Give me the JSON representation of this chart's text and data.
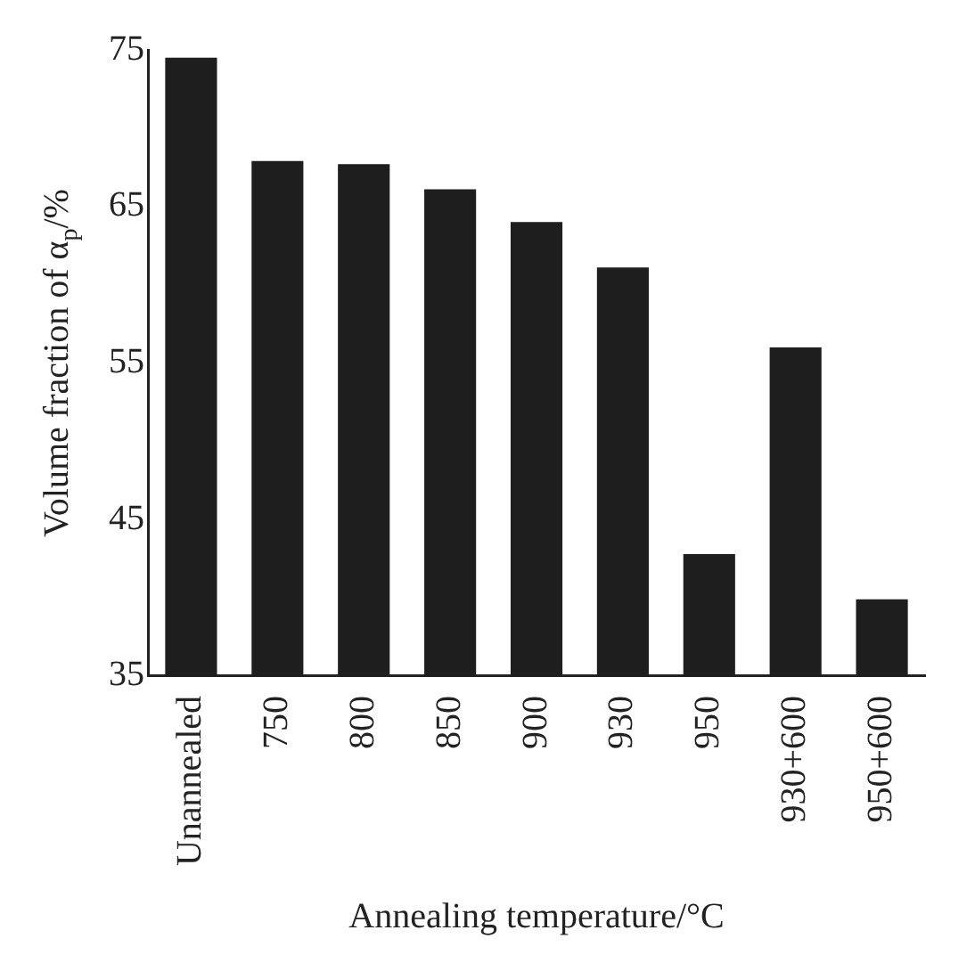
{
  "chart_data": {
    "type": "bar",
    "xlabel": "Annealing temperature/°C",
    "ylabel": "Volume fraction of α$_{p}$/%",
    "categories": [
      "Unannealed",
      "750",
      "800",
      "850",
      "900",
      "930",
      "950",
      "930+600",
      "950+600"
    ],
    "values": [
      74.5,
      67.9,
      67.7,
      66.1,
      64.0,
      61.1,
      42.8,
      56.0,
      39.9
    ],
    "color": "#1e1e1e",
    "ylim": [
      35,
      75
    ],
    "yticks": [
      35,
      45,
      55,
      65,
      75
    ],
    "grid": false,
    "legend": false
  }
}
